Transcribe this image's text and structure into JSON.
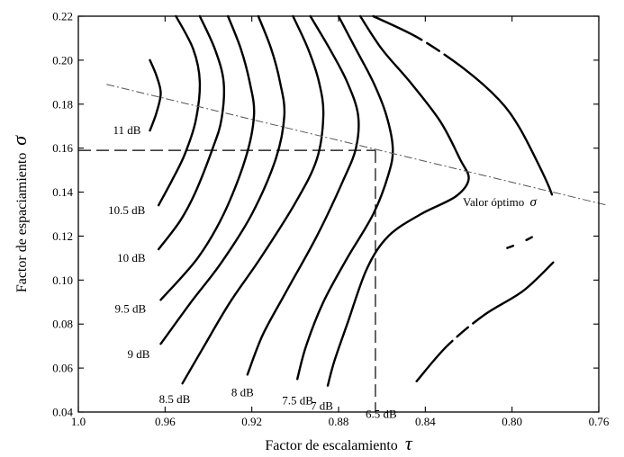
{
  "chart_data": {
    "type": "line",
    "xlabel": "Factor de escalamiento",
    "xlabel_symbol": "τ",
    "ylabel": "Factor de espaciamiento",
    "ylabel_symbol": "σ",
    "xlim": [
      1.0,
      0.76
    ],
    "ylim": [
      0.04,
      0.22
    ],
    "x_reversed": true,
    "xticks": [
      "1.0",
      "0.96",
      "0.92",
      "0.88",
      "0.84",
      "0.80",
      "0.76"
    ],
    "xtick_values": [
      1.0,
      0.96,
      0.92,
      0.88,
      0.84,
      0.8,
      0.76
    ],
    "yticks": [
      "0.04",
      "0.06",
      "0.08",
      "0.10",
      "0.12",
      "0.14",
      "0.16",
      "0.18",
      "0.20",
      "0.22"
    ],
    "ytick_values": [
      0.04,
      0.06,
      0.08,
      0.1,
      0.12,
      0.14,
      0.16,
      0.18,
      0.2,
      0.22
    ],
    "series": [
      {
        "name": "11 dB",
        "points": [
          [
            0.967,
            0.2
          ],
          [
            0.964,
            0.193
          ],
          [
            0.962,
            0.185
          ],
          [
            0.964,
            0.176
          ],
          [
            0.967,
            0.168
          ]
        ]
      },
      {
        "name": "10.5 dB",
        "points": [
          [
            0.955,
            0.22
          ],
          [
            0.947,
            0.205
          ],
          [
            0.944,
            0.19
          ],
          [
            0.946,
            0.172
          ],
          [
            0.951,
            0.157
          ],
          [
            0.957,
            0.145
          ],
          [
            0.963,
            0.134
          ]
        ]
      },
      {
        "name": "10 dB",
        "points": [
          [
            0.944,
            0.22
          ],
          [
            0.937,
            0.205
          ],
          [
            0.933,
            0.19
          ],
          [
            0.934,
            0.173
          ],
          [
            0.938,
            0.16
          ],
          [
            0.946,
            0.14
          ],
          [
            0.953,
            0.127
          ],
          [
            0.963,
            0.114
          ]
        ]
      },
      {
        "name": "9.5 dB",
        "points": [
          [
            0.931,
            0.22
          ],
          [
            0.925,
            0.205
          ],
          [
            0.921,
            0.19
          ],
          [
            0.919,
            0.175
          ],
          [
            0.923,
            0.155
          ],
          [
            0.933,
            0.13
          ],
          [
            0.945,
            0.11
          ],
          [
            0.962,
            0.091
          ]
        ]
      },
      {
        "name": "9 dB",
        "points": [
          [
            0.917,
            0.22
          ],
          [
            0.911,
            0.205
          ],
          [
            0.907,
            0.19
          ],
          [
            0.905,
            0.175
          ],
          [
            0.909,
            0.155
          ],
          [
            0.92,
            0.13
          ],
          [
            0.934,
            0.108
          ],
          [
            0.948,
            0.09
          ],
          [
            0.962,
            0.071
          ]
        ]
      },
      {
        "name": "8.5 dB",
        "points": [
          [
            0.901,
            0.22
          ],
          [
            0.894,
            0.205
          ],
          [
            0.889,
            0.19
          ],
          [
            0.887,
            0.175
          ],
          [
            0.89,
            0.155
          ],
          [
            0.9,
            0.135
          ],
          [
            0.916,
            0.11
          ],
          [
            0.93,
            0.09
          ],
          [
            0.942,
            0.07
          ],
          [
            0.952,
            0.053
          ]
        ]
      },
      {
        "name": "8 dB",
        "points": [
          [
            0.893,
            0.22
          ],
          [
            0.884,
            0.205
          ],
          [
            0.876,
            0.19
          ],
          [
            0.871,
            0.175
          ],
          [
            0.872,
            0.16
          ],
          [
            0.878,
            0.145
          ],
          [
            0.89,
            0.12
          ],
          [
            0.904,
            0.095
          ],
          [
            0.915,
            0.075
          ],
          [
            0.922,
            0.057
          ]
        ]
      },
      {
        "name": "7.5 dB",
        "points": [
          [
            0.88,
            0.22
          ],
          [
            0.872,
            0.205
          ],
          [
            0.864,
            0.19
          ],
          [
            0.858,
            0.175
          ],
          [
            0.855,
            0.16
          ],
          [
            0.857,
            0.148
          ],
          [
            0.864,
            0.13
          ],
          [
            0.876,
            0.11
          ],
          [
            0.887,
            0.09
          ],
          [
            0.895,
            0.07
          ],
          [
            0.899,
            0.055
          ]
        ]
      },
      {
        "name": "7 dB",
        "points": [
          [
            0.87,
            0.22
          ],
          [
            0.86,
            0.205
          ],
          [
            0.847,
            0.19
          ],
          [
            0.833,
            0.172
          ],
          [
            0.824,
            0.155
          ],
          [
            0.82,
            0.146
          ],
          [
            0.826,
            0.138
          ],
          [
            0.842,
            0.13
          ],
          [
            0.857,
            0.12
          ],
          [
            0.867,
            0.105
          ],
          [
            0.876,
            0.08
          ],
          [
            0.882,
            0.063
          ],
          [
            0.885,
            0.052
          ]
        ]
      },
      {
        "name": "6.5 dB",
        "points": [
          [
            0.864,
            0.22
          ],
          [
            0.843,
            0.21
          ],
          [
            0.822,
            0.196
          ],
          [
            0.806,
            0.182
          ],
          [
            0.797,
            0.17
          ],
          [
            0.789,
            0.155
          ],
          [
            0.782,
            0.14
          ],
          [
            0.78,
            0.13
          ],
          [
            0.79,
            0.12
          ],
          [
            0.81,
            0.112
          ],
          [
            0.835,
            0.106
          ],
          [
            0.85,
            0.095
          ],
          [
            0.856,
            0.084
          ],
          [
            0.86,
            0.075
          ]
        ]
      },
      {
        "name": "",
        "points": [
          [
            0.844,
            0.054
          ],
          [
            0.83,
            0.07
          ],
          [
            0.813,
            0.084
          ],
          [
            0.795,
            0.095
          ],
          [
            0.781,
            0.108
          ]
        ]
      }
    ],
    "annotations": {
      "optimum_label": "Valor óptimo",
      "optimum_symbol": "σ",
      "optimum_line": [
        [
          0.987,
          0.189
        ],
        [
          0.756,
          0.134
        ]
      ],
      "reference_point": [
        0.863,
        0.159
      ]
    }
  }
}
